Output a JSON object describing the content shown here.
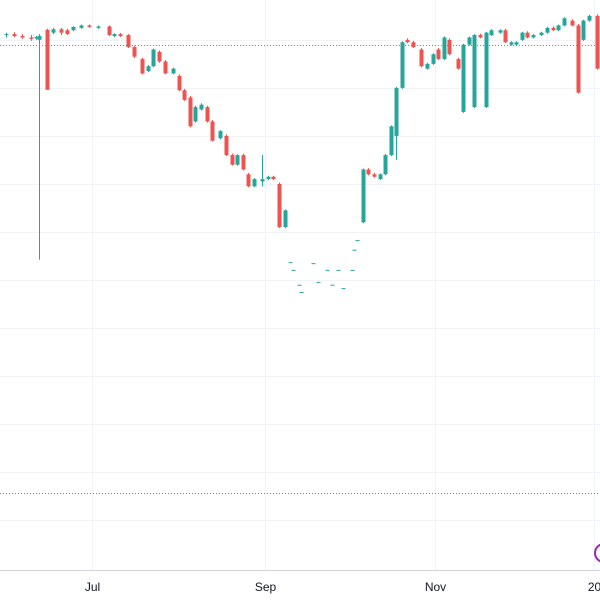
{
  "chart_data": {
    "type": "candlestick",
    "colors": {
      "up": "#26a69a",
      "down": "#ef5350"
    },
    "grid": true,
    "xlim": [
      -33,
      182
    ],
    "xticks": [
      {
        "value": 0,
        "label": "Jul"
      },
      {
        "value": 62,
        "label": "Sep"
      },
      {
        "value": 123,
        "label": "Nov"
      },
      {
        "value": 180,
        "label": "20"
      }
    ],
    "ylim": [
      -0.04,
      11.83
    ],
    "yticks": [
      1,
      2,
      3,
      4,
      5,
      6,
      7,
      8,
      9,
      10,
      11
    ],
    "price_lines": [
      {
        "value": 10.9,
        "color": "#ef5350"
      },
      {
        "value": 1.56,
        "color": "#26a69a"
      }
    ],
    "x": [
      -31,
      -28,
      -25,
      -22,
      -20,
      -19,
      -16,
      -14,
      -11,
      -9,
      -7,
      -4,
      -1,
      2,
      6,
      8,
      10,
      13,
      15,
      18,
      20,
      22,
      24,
      26,
      29,
      31,
      33,
      35,
      37,
      39,
      41,
      43,
      46,
      48,
      50,
      52,
      54,
      56,
      58,
      61,
      63,
      65,
      67,
      69,
      71,
      72,
      74,
      75,
      79,
      81,
      84,
      86,
      88,
      90,
      93,
      94,
      95,
      97,
      99,
      101,
      103,
      105,
      107,
      109,
      111,
      113,
      115,
      118,
      120,
      122,
      124,
      126,
      128,
      131,
      133,
      135,
      137,
      139,
      141,
      143,
      146,
      148,
      150,
      152,
      154,
      156,
      158,
      161,
      163,
      165,
      167,
      169,
      172,
      174,
      176,
      178,
      181
    ],
    "open": [
      11.1,
      11.12,
      11.08,
      11.05,
      11.03,
      11.0,
      11.21,
      11.15,
      11.22,
      11.2,
      11.2,
      11.25,
      11.3,
      11.25,
      11.28,
      11.08,
      11.12,
      11.1,
      10.85,
      10.6,
      10.35,
      10.45,
      10.75,
      10.55,
      10.3,
      10.25,
      9.95,
      9.8,
      9.3,
      9.55,
      9.6,
      9.3,
      8.95,
      9.0,
      8.6,
      8.4,
      8.6,
      8.2,
      7.95,
      8.05,
      8.1,
      8.15,
      8.0,
      7.1,
      6.37,
      6.21,
      5.9,
      5.75,
      6.35,
      5.96,
      6.21,
      5.9,
      6.21,
      5.83,
      6.21,
      6.63,
      6.83,
      7.2,
      8.3,
      8.2,
      8.1,
      8.2,
      8.6,
      9.0,
      10.0,
      11.0,
      10.95,
      10.8,
      10.4,
      10.5,
      10.8,
      10.6,
      11.0,
      10.6,
      9.5,
      10.9,
      9.6,
      11.1,
      9.6,
      11.1,
      11.15,
      11.2,
      10.9,
      10.9,
      11.0,
      11.15,
      11.05,
      11.1,
      11.15,
      11.25,
      11.2,
      11.3,
      11.4,
      11.3,
      11.0,
      11.4,
      11.5
    ],
    "high": [
      11.15,
      11.16,
      11.12,
      11.1,
      11.08,
      11.12,
      11.23,
      11.25,
      11.25,
      11.23,
      11.28,
      11.32,
      11.32,
      11.3,
      11.3,
      11.14,
      11.14,
      11.12,
      10.88,
      10.63,
      10.48,
      10.82,
      10.78,
      10.58,
      10.42,
      10.28,
      9.98,
      9.83,
      9.63,
      9.68,
      9.63,
      9.33,
      9.12,
      9.03,
      8.63,
      8.62,
      8.63,
      8.23,
      8.12,
      8.6,
      8.17,
      8.17,
      8.03,
      7.47,
      6.37,
      6.21,
      5.9,
      5.75,
      6.35,
      5.96,
      6.21,
      5.9,
      6.21,
      5.83,
      6.21,
      6.63,
      6.83,
      8.32,
      8.33,
      8.23,
      8.22,
      8.62,
      9.22,
      10.02,
      10.97,
      11.03,
      10.98,
      10.83,
      10.52,
      10.72,
      10.83,
      11.07,
      11.03,
      10.63,
      10.92,
      11.07,
      11.12,
      11.13,
      11.17,
      11.22,
      11.22,
      11.23,
      10.97,
      10.97,
      11.17,
      11.18,
      11.12,
      11.17,
      11.27,
      11.28,
      11.32,
      11.47,
      11.43,
      11.33,
      11.42,
      11.52,
      11.53
    ],
    "low": [
      11.05,
      11.06,
      11.02,
      10.98,
      11.0,
      6.42,
      9.96,
      11.12,
      11.1,
      11.1,
      11.18,
      11.23,
      11.25,
      11.23,
      11.08,
      11.06,
      11.06,
      10.83,
      10.62,
      10.28,
      10.33,
      10.43,
      10.52,
      10.28,
      10.28,
      9.93,
      9.73,
      9.18,
      9.28,
      9.53,
      9.28,
      8.88,
      8.93,
      8.58,
      8.38,
      8.38,
      8.28,
      7.93,
      7.93,
      7.95,
      8.08,
      8.08,
      7.08,
      7.08,
      6.37,
      6.21,
      5.9,
      5.75,
      6.35,
      5.96,
      6.21,
      5.9,
      6.21,
      5.83,
      6.21,
      6.63,
      6.83,
      7.18,
      8.18,
      8.13,
      8.08,
      8.18,
      8.58,
      8.5,
      9.98,
      10.93,
      10.83,
      10.43,
      10.38,
      10.48,
      10.58,
      10.58,
      10.68,
      10.38,
      9.48,
      10.88,
      9.58,
      11.03,
      9.58,
      11.08,
      11.13,
      10.93,
      10.88,
      10.88,
      10.98,
      11.03,
      11.03,
      11.08,
      11.13,
      11.18,
      11.18,
      11.28,
      11.28,
      9.88,
      10.98,
      11.38,
      10.38
    ],
    "close": [
      11.12,
      11.08,
      11.05,
      11.02,
      11.06,
      11.08,
      9.96,
      11.22,
      11.15,
      11.12,
      11.27,
      11.3,
      11.27,
      11.28,
      11.1,
      11.12,
      11.08,
      10.85,
      10.65,
      10.3,
      10.45,
      10.8,
      10.55,
      10.3,
      10.4,
      9.95,
      9.75,
      9.2,
      9.6,
      9.65,
      9.3,
      8.9,
      9.1,
      8.6,
      8.4,
      8.6,
      8.3,
      7.95,
      8.1,
      8.1,
      8.15,
      8.1,
      7.1,
      7.45,
      6.37,
      6.21,
      5.9,
      5.75,
      6.35,
      5.96,
      6.21,
      5.9,
      6.21,
      5.83,
      6.21,
      6.63,
      6.83,
      8.3,
      8.2,
      8.15,
      8.2,
      8.6,
      9.2,
      10.0,
      10.95,
      10.95,
      10.85,
      10.45,
      10.5,
      10.7,
      10.6,
      11.05,
      10.7,
      10.4,
      10.9,
      11.05,
      11.1,
      11.05,
      11.15,
      11.2,
      11.2,
      10.95,
      10.95,
      10.95,
      11.15,
      11.05,
      11.1,
      11.15,
      11.25,
      11.2,
      11.3,
      11.45,
      11.3,
      9.9,
      11.4,
      11.5,
      10.4
    ]
  }
}
